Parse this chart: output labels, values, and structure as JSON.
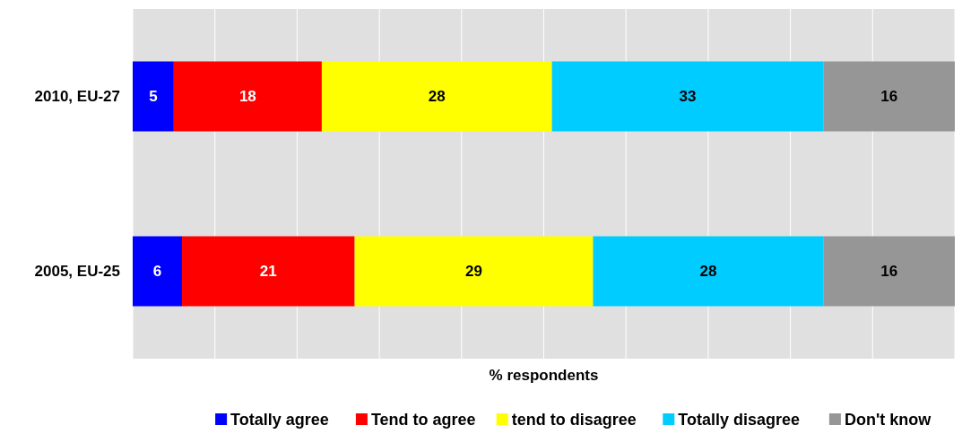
{
  "chart_data": {
    "type": "bar",
    "orientation": "horizontal",
    "stacked": true,
    "categories": [
      "2010, EU-27",
      "2005, EU-25"
    ],
    "series": [
      {
        "name": "Totally agree",
        "color": "#0000ff",
        "values": [
          5,
          6
        ]
      },
      {
        "name": "Tend to agree",
        "color": "#ff0000",
        "values": [
          18,
          21
        ]
      },
      {
        "name": "tend to disagree",
        "color": "#ffff00",
        "values": [
          28,
          29
        ]
      },
      {
        "name": "Totally disagree",
        "color": "#00ccff",
        "values": [
          33,
          28
        ]
      },
      {
        "name": "Don't know",
        "color": "#969696",
        "values": [
          16,
          16
        ]
      }
    ],
    "xlabel": "% respondents",
    "xlim": [
      0,
      100
    ],
    "xticks": [
      {
        "value": 0,
        "label": null
      },
      {
        "value": 10,
        "label": null
      },
      {
        "value": 20,
        "label": null
      },
      {
        "value": 30,
        "label": null
      },
      {
        "value": 40,
        "label": null
      },
      {
        "value": 50,
        "label": null
      },
      {
        "value": 60,
        "label": null
      },
      {
        "value": 70,
        "label": null
      },
      {
        "value": 80,
        "label": null
      },
      {
        "value": 90,
        "label": null
      },
      {
        "value": 100,
        "label": null
      }
    ],
    "tick_labels": "y",
    "grid": "x",
    "data_labels": true,
    "legend": "bottom"
  }
}
